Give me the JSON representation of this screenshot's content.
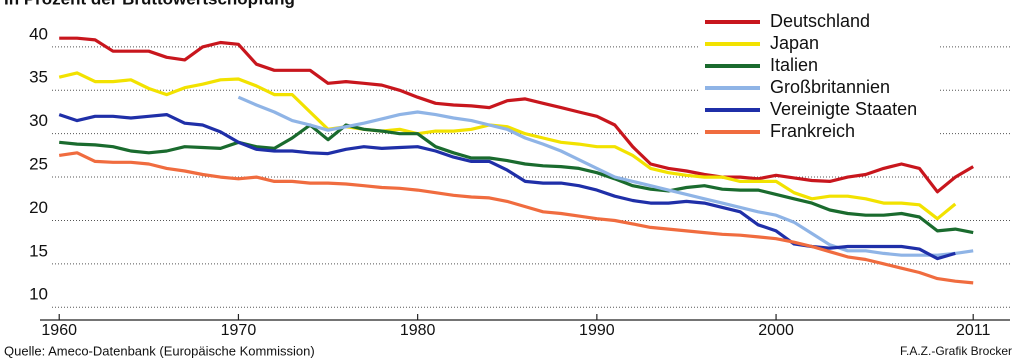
{
  "chart_data": {
    "type": "line",
    "title": "In Prozent der Bruttowertschöpfung",
    "source": "Quelle: Ameco-Datenbank (Europäische Kommission)",
    "credit": "F.A.Z.-Grafik Brocker",
    "x": [
      1960,
      1961,
      1962,
      1963,
      1964,
      1965,
      1966,
      1967,
      1968,
      1969,
      1970,
      1971,
      1972,
      1973,
      1974,
      1975,
      1976,
      1977,
      1978,
      1979,
      1980,
      1981,
      1982,
      1983,
      1984,
      1985,
      1986,
      1987,
      1988,
      1989,
      1990,
      1991,
      1992,
      1993,
      1994,
      1995,
      1996,
      1997,
      1998,
      1999,
      2000,
      2001,
      2002,
      2003,
      2004,
      2005,
      2006,
      2007,
      2008,
      2009,
      2010,
      2011
    ],
    "xlim": [
      1957.7,
      2013.5
    ],
    "xticks": [
      1960,
      1970,
      1980,
      1990,
      2000,
      2011
    ],
    "ylim": [
      8.3,
      45.4
    ],
    "yticks": [
      10,
      15,
      20,
      25,
      30,
      35,
      40
    ],
    "grid": true,
    "legend": "upper right",
    "series": [
      {
        "name": "Deutschland",
        "color": "#c8161d",
        "values": [
          41,
          41,
          40.8,
          39.5,
          39.5,
          39.5,
          38.8,
          38.5,
          40,
          40.5,
          40.3,
          38,
          37.3,
          37.3,
          37.3,
          35.8,
          36,
          35.8,
          35.6,
          35,
          34.2,
          33.5,
          33.3,
          33.2,
          33,
          33.8,
          34,
          33.5,
          33,
          32.5,
          32,
          31,
          28.5,
          26.5,
          26,
          25.7,
          25.3,
          25,
          25,
          24.8,
          25.2,
          24.9,
          24.6,
          24.5,
          25,
          25.3,
          26,
          26.5,
          26,
          23.3,
          25,
          26.2
        ]
      },
      {
        "name": "Japan",
        "color": "#f2e200",
        "values": [
          36.5,
          37,
          36,
          36,
          36.2,
          35.2,
          34.5,
          35.3,
          35.7,
          36.2,
          36.3,
          35.5,
          34.5,
          34.5,
          32.5,
          30.5,
          30.8,
          30.5,
          30.3,
          30.5,
          30,
          30.3,
          30.3,
          30.5,
          31,
          30.8,
          30,
          29.5,
          29,
          28.8,
          28.5,
          28.5,
          27.5,
          26,
          25.5,
          25.2,
          25,
          25,
          24.5,
          24.5,
          24.5,
          23.2,
          22.5,
          22.8,
          22.8,
          22.5,
          22,
          22,
          21.8,
          20.2,
          21.9,
          null
        ]
      },
      {
        "name": "Italien",
        "color": "#1a6b2e",
        "values": [
          29,
          28.8,
          28.7,
          28.5,
          28,
          27.8,
          28,
          28.5,
          28.4,
          28.3,
          29,
          28.5,
          28.3,
          29.5,
          31,
          29.3,
          31,
          30.5,
          30.3,
          30,
          30,
          28.5,
          27.8,
          27.2,
          27.2,
          26.9,
          26.5,
          26.3,
          26.2,
          26,
          25.5,
          24.8,
          24,
          23.6,
          23.4,
          23.8,
          24,
          23.6,
          23.5,
          23.5,
          23,
          22.5,
          22,
          21.2,
          20.8,
          20.6,
          20.6,
          20.8,
          20.4,
          18.8,
          19,
          18.6
        ]
      },
      {
        "name": "Großbritannien",
        "color": "#8fb4e6",
        "values": [
          null,
          null,
          null,
          null,
          null,
          null,
          null,
          null,
          null,
          null,
          34.2,
          33.3,
          32.5,
          31.5,
          31,
          30.4,
          30.8,
          31.2,
          31.7,
          32.2,
          32.5,
          32.2,
          31.8,
          31.5,
          31,
          30.5,
          29.5,
          28.8,
          28,
          27,
          26,
          25,
          24.5,
          24,
          23.5,
          23,
          22.5,
          22,
          21.5,
          21,
          20.6,
          19.8,
          18.5,
          17.2,
          16.5,
          16.5,
          16.2,
          16,
          16,
          16,
          16.2,
          16.5
        ]
      },
      {
        "name": "Vereinigte Staaten",
        "color": "#1f2fa8",
        "values": [
          32.2,
          31.5,
          32,
          32,
          31.8,
          32,
          32.2,
          31.2,
          31,
          30.2,
          29,
          28.2,
          28,
          28,
          27.8,
          27.7,
          28.2,
          28.5,
          28.3,
          28.4,
          28.5,
          28,
          27.3,
          26.8,
          26.8,
          25.8,
          24.5,
          24.3,
          24.3,
          24,
          23.5,
          22.8,
          22.3,
          22,
          22,
          22.2,
          22,
          21.5,
          21,
          19.5,
          18.8,
          17.3,
          17,
          16.8,
          17,
          17,
          17,
          17,
          16.7,
          15.6,
          16.2,
          null
        ]
      },
      {
        "name": "Frankreich",
        "color": "#f06c3f",
        "values": [
          27.5,
          27.8,
          26.8,
          26.7,
          26.7,
          26.5,
          26,
          25.7,
          25.3,
          25,
          24.8,
          25,
          24.5,
          24.5,
          24.3,
          24.3,
          24.2,
          24,
          23.8,
          23.7,
          23.5,
          23.2,
          22.9,
          22.7,
          22.6,
          22.2,
          21.6,
          21,
          20.8,
          20.5,
          20.2,
          20,
          19.6,
          19.2,
          19,
          18.8,
          18.6,
          18.4,
          18.3,
          18.1,
          17.9,
          17.5,
          17,
          16.4,
          15.8,
          15.5,
          15,
          14.5,
          14,
          13.3,
          13,
          12.8
        ]
      }
    ]
  }
}
